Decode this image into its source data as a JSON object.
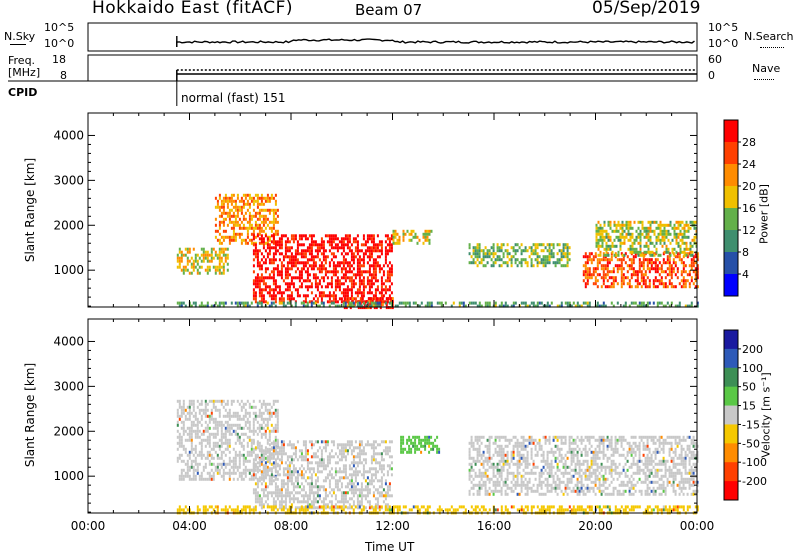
{
  "header": {
    "title": "Hokkaido East (fitACF)",
    "beam": "Beam 07",
    "date": "05/Sep/2019"
  },
  "nsky_panel": {
    "label": "N.Sky",
    "ticks_left": [
      "10^5",
      "10^0"
    ],
    "ticks_right": [
      "10^5",
      "10^0"
    ],
    "right_label": "N.Search"
  },
  "freq_panel": {
    "label_line1": "Freq.",
    "label_line2": "[MHz]",
    "ticks_left": [
      "18",
      "8"
    ],
    "ticks_right": [
      "60",
      "0"
    ],
    "right_label": "Nave"
  },
  "cpid": {
    "label": "CPID",
    "mode": "normal (fast) 151"
  },
  "x_axis": {
    "label": "Time UT",
    "ticks": [
      "00:00",
      "04:00",
      "08:00",
      "12:00",
      "16:00",
      "20:00",
      "00:00"
    ]
  },
  "power_panel": {
    "ylabel": "Slant Range [km]",
    "yticks": [
      "4000",
      "3000",
      "2000",
      "1000"
    ],
    "colorbar_label": "Power [dB]",
    "colorbar_ticks": [
      "28",
      "24",
      "20",
      "16",
      "12",
      "8",
      "4"
    ],
    "colors": [
      "#0000ff",
      "#2650a8",
      "#3f8f6f",
      "#63b04a",
      "#f0c000",
      "#ff8c00",
      "#ff4000",
      "#ff0000"
    ]
  },
  "velocity_panel": {
    "ylabel": "Slant Range [km]",
    "yticks": [
      "4000",
      "3000",
      "2000",
      "1000"
    ],
    "colorbar_label": "Velocity [m s⁻¹]",
    "colorbar_ticks": [
      "200",
      "100",
      "50",
      "15",
      "-15",
      "-50",
      "-100",
      "-200"
    ],
    "colors": [
      "#1a1aa0",
      "#2e5ab8",
      "#3d8f55",
      "#5ac846",
      "#c8c8c8",
      "#f5c800",
      "#ff8c00",
      "#ff4000",
      "#ff0000"
    ]
  },
  "chart_data": [
    {
      "type": "heatmap",
      "title": "Power",
      "xlabel": "Time UT",
      "ylabel": "Slant Range [km]",
      "xlim": [
        "00:00",
        "24:00"
      ],
      "ylim": [
        180,
        4500
      ],
      "colorbar": {
        "label": "Power [dB]",
        "range": [
          0,
          32
        ],
        "ticks": [
          4,
          8,
          12,
          16,
          20,
          24,
          28
        ]
      },
      "regions": [
        {
          "t_start": 3.5,
          "t_end": 5.5,
          "r_start": 900,
          "r_end": 1500,
          "power_db": 18
        },
        {
          "t_start": 5.0,
          "t_end": 7.5,
          "r_start": 1600,
          "r_end": 2700,
          "power_db": 22
        },
        {
          "t_start": 6.5,
          "t_end": 12.0,
          "r_start": 300,
          "r_end": 1800,
          "power_db": 30
        },
        {
          "t_start": 10.0,
          "t_end": 12.0,
          "r_start": 180,
          "r_end": 400,
          "power_db": 28
        },
        {
          "t_start": 12.0,
          "t_end": 13.5,
          "r_start": 1600,
          "r_end": 1900,
          "power_db": 18
        },
        {
          "t_start": 15.0,
          "t_end": 19.0,
          "r_start": 1100,
          "r_end": 1600,
          "power_db": 14
        },
        {
          "t_start": 19.5,
          "t_end": 24.0,
          "r_start": 600,
          "r_end": 1400,
          "power_db": 26
        },
        {
          "t_start": 20.0,
          "t_end": 24.0,
          "r_start": 1300,
          "r_end": 2100,
          "power_db": 16
        },
        {
          "t_start": 3.5,
          "t_end": 24.0,
          "r_start": 180,
          "r_end": 300,
          "power_db": 12
        }
      ]
    },
    {
      "type": "heatmap",
      "title": "Velocity",
      "xlabel": "Time UT",
      "ylabel": "Slant Range [km]",
      "xlim": [
        "00:00",
        "24:00"
      ],
      "ylim": [
        180,
        4500
      ],
      "colorbar": {
        "label": "Velocity [m s⁻¹]",
        "range": [
          -250,
          250
        ],
        "ticks": [
          200,
          100,
          50,
          15,
          -15,
          -50,
          -100,
          -200
        ]
      },
      "regions": [
        {
          "t_start": 3.5,
          "t_end": 7.5,
          "r_start": 900,
          "r_end": 2700,
          "velocity": 0
        },
        {
          "t_start": 6.5,
          "t_end": 12.0,
          "r_start": 300,
          "r_end": 1800,
          "velocity": 0
        },
        {
          "t_start": 12.3,
          "t_end": 13.8,
          "r_start": 1500,
          "r_end": 1900,
          "velocity": 40
        },
        {
          "t_start": 15.0,
          "t_end": 24.0,
          "r_start": 600,
          "r_end": 1900,
          "velocity": 0
        },
        {
          "t_start": 3.5,
          "t_end": 24.0,
          "r_start": 180,
          "r_end": 350,
          "velocity": -30
        }
      ]
    }
  ]
}
